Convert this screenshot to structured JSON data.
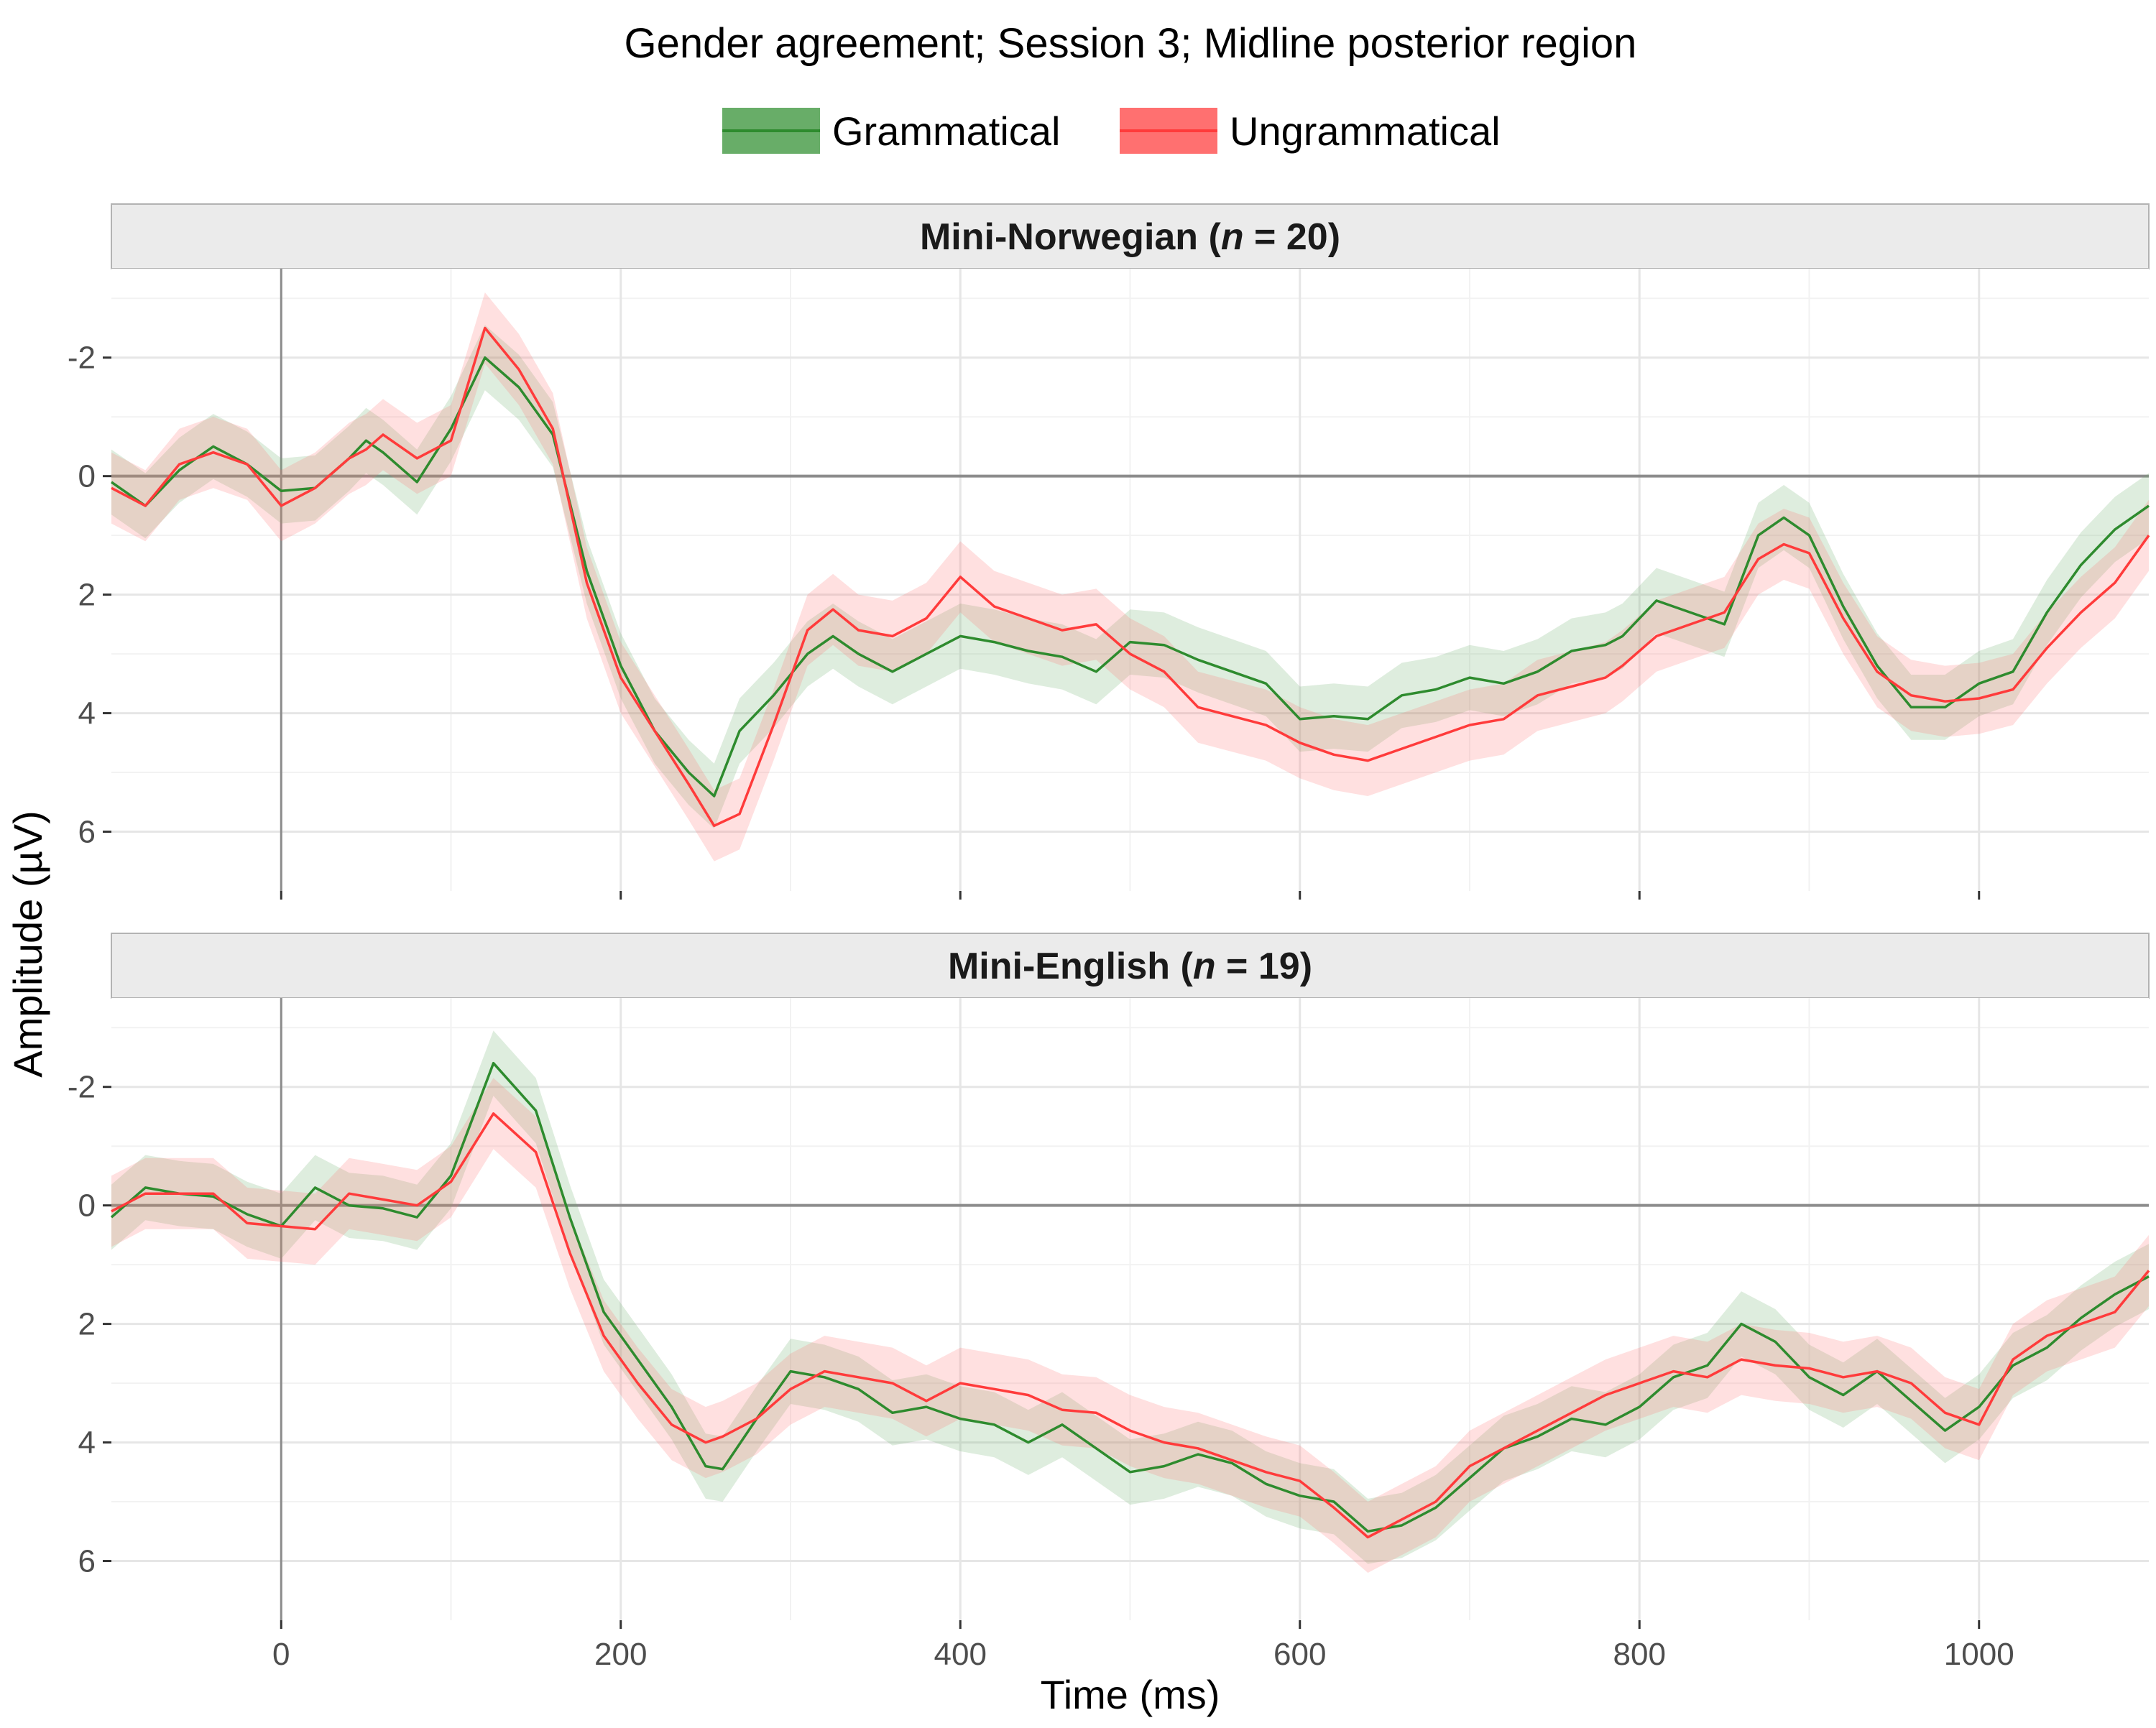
{
  "chart_data": {
    "type": "line",
    "title": "Gender agreement; Session 3; Midline posterior region",
    "xlabel": "Time (ms)",
    "ylabel": "Amplitude (µV)",
    "y_axis_reversed": true,
    "legend_position": "top",
    "legend": [
      {
        "label": "Grammatical",
        "color": "#2e8b2e",
        "ribbon_color": "#68ad68"
      },
      {
        "label": "Ungrammatical",
        "color": "#ff3b3b",
        "ribbon_color": "#ff7070"
      }
    ],
    "xlim": [
      -100,
      1100
    ],
    "ylim": [
      -3.5,
      7
    ],
    "x_ticks": [
      0,
      200,
      400,
      600,
      800,
      1000
    ],
    "x_tick_labels": [
      "0",
      "200",
      "400",
      "600",
      "800",
      "1000"
    ],
    "y_ticks": [
      -2,
      0,
      2,
      4,
      6
    ],
    "y_tick_labels": [
      "-2",
      "0",
      "2",
      "4",
      "6"
    ],
    "reference_lines": {
      "x": 0,
      "y": 0
    },
    "grid": true,
    "ribbon": "confidence band around each waveform",
    "panels": [
      {
        "strip_prefix": "Mini-Norwegian (",
        "strip_n": "n",
        "strip_suffix": " = 20)",
        "x": [
          -100,
          -80,
          -60,
          -40,
          -20,
          0,
          20,
          40,
          50,
          60,
          80,
          100,
          120,
          140,
          160,
          180,
          200,
          220,
          240,
          255,
          270,
          290,
          310,
          325,
          340,
          360,
          380,
          400,
          420,
          440,
          460,
          480,
          500,
          520,
          540,
          560,
          580,
          600,
          620,
          640,
          660,
          680,
          700,
          720,
          740,
          760,
          780,
          790,
          810,
          830,
          850,
          870,
          885,
          900,
          920,
          940,
          960,
          980,
          1000,
          1020,
          1040,
          1060,
          1080,
          1100
        ],
        "series": [
          {
            "name": "Grammatical",
            "values": [
              0.1,
              0.5,
              -0.1,
              -0.5,
              -0.2,
              0.25,
              0.2,
              -0.3,
              -0.6,
              -0.4,
              0.1,
              -0.8,
              -2.0,
              -1.5,
              -0.7,
              1.6,
              3.2,
              4.3,
              5.0,
              5.4,
              4.3,
              3.7,
              3.0,
              2.7,
              3.0,
              3.3,
              3.0,
              2.7,
              2.8,
              2.95,
              3.05,
              3.3,
              2.8,
              2.85,
              3.1,
              3.3,
              3.5,
              4.1,
              4.05,
              4.1,
              3.7,
              3.6,
              3.4,
              3.5,
              3.3,
              2.95,
              2.85,
              2.7,
              2.1,
              2.3,
              2.5,
              1.0,
              0.7,
              1.0,
              2.2,
              3.2,
              3.9,
              3.9,
              3.5,
              3.3,
              2.3,
              1.5,
              0.9,
              0.5
            ]
          },
          {
            "name": "Ungrammatical",
            "values": [
              0.2,
              0.5,
              -0.2,
              -0.4,
              -0.2,
              0.5,
              0.2,
              -0.3,
              -0.45,
              -0.7,
              -0.3,
              -0.6,
              -2.5,
              -1.8,
              -0.8,
              1.8,
              3.4,
              4.3,
              5.2,
              5.9,
              5.7,
              4.2,
              2.6,
              2.25,
              2.6,
              2.7,
              2.4,
              1.7,
              2.2,
              2.4,
              2.6,
              2.5,
              3.0,
              3.3,
              3.9,
              4.05,
              4.2,
              4.5,
              4.7,
              4.8,
              4.6,
              4.4,
              4.2,
              4.1,
              3.7,
              3.55,
              3.4,
              3.2,
              2.7,
              2.5,
              2.3,
              1.4,
              1.15,
              1.3,
              2.4,
              3.3,
              3.7,
              3.8,
              3.75,
              3.6,
              2.9,
              2.3,
              1.8,
              1.0
            ]
          }
        ]
      },
      {
        "strip_prefix": "Mini-English (",
        "strip_n": "n",
        "strip_suffix": " = 19)",
        "x": [
          -100,
          -80,
          -60,
          -40,
          -20,
          0,
          20,
          40,
          60,
          80,
          100,
          125,
          150,
          170,
          190,
          210,
          230,
          250,
          260,
          280,
          300,
          320,
          340,
          360,
          380,
          400,
          420,
          440,
          460,
          480,
          500,
          520,
          540,
          560,
          580,
          600,
          620,
          640,
          660,
          680,
          700,
          720,
          740,
          760,
          780,
          800,
          820,
          840,
          860,
          880,
          900,
          920,
          940,
          960,
          980,
          1000,
          1020,
          1040,
          1060,
          1080,
          1100
        ],
        "series": [
          {
            "name": "Grammatical",
            "values": [
              0.2,
              -0.3,
              -0.2,
              -0.15,
              0.15,
              0.35,
              -0.3,
              0.0,
              0.05,
              0.2,
              -0.5,
              -2.4,
              -1.6,
              0.2,
              1.8,
              2.6,
              3.4,
              4.4,
              4.45,
              3.6,
              2.8,
              2.9,
              3.1,
              3.5,
              3.4,
              3.6,
              3.7,
              4.0,
              3.7,
              4.1,
              4.5,
              4.4,
              4.2,
              4.35,
              4.7,
              4.9,
              5.0,
              5.5,
              5.4,
              5.1,
              4.6,
              4.1,
              3.9,
              3.6,
              3.7,
              3.4,
              2.9,
              2.7,
              2.0,
              2.3,
              2.9,
              3.2,
              2.8,
              3.3,
              3.8,
              3.4,
              2.7,
              2.4,
              1.9,
              1.5,
              1.2
            ]
          },
          {
            "name": "Ungrammatical",
            "values": [
              0.1,
              -0.2,
              -0.2,
              -0.2,
              0.3,
              0.35,
              0.4,
              -0.2,
              -0.1,
              0.0,
              -0.4,
              -1.55,
              -0.9,
              0.8,
              2.2,
              3.0,
              3.7,
              4.0,
              3.9,
              3.6,
              3.1,
              2.8,
              2.9,
              3.0,
              3.3,
              3.0,
              3.1,
              3.2,
              3.45,
              3.5,
              3.8,
              4.0,
              4.1,
              4.3,
              4.5,
              4.65,
              5.1,
              5.6,
              5.3,
              5.0,
              4.4,
              4.1,
              3.8,
              3.5,
              3.2,
              3.0,
              2.8,
              2.9,
              2.6,
              2.7,
              2.75,
              2.9,
              2.8,
              3.0,
              3.5,
              3.7,
              2.6,
              2.2,
              2.0,
              1.8,
              1.1
            ]
          }
        ]
      }
    ]
  }
}
